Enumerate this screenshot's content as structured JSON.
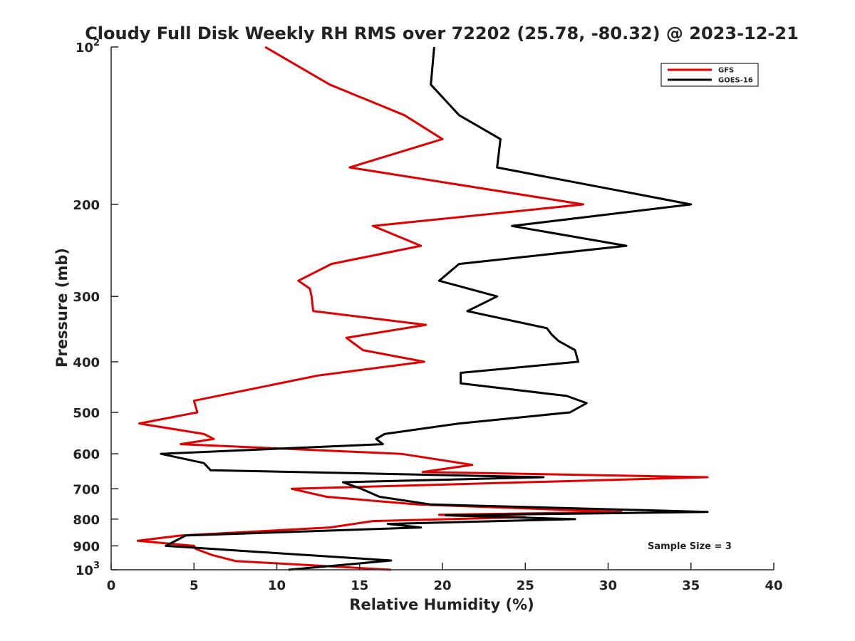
{
  "chart_data": {
    "type": "line",
    "title": "Cloudy Full Disk Weekly RH RMS over 72202 (25.78, -80.32) @ 2023-12-21",
    "xlabel": "Relative Humidity (%)",
    "ylabel": "Pressure (mb)",
    "xlim": [
      0,
      40
    ],
    "ylim": [
      100,
      1000
    ],
    "yscale": "log",
    "y_reversed": true,
    "grid": false,
    "legend_position": "top-right",
    "x_ticks": [
      0,
      5,
      10,
      15,
      20,
      25,
      30,
      35,
      40
    ],
    "x_tick_labels": [
      "0",
      "5",
      "10",
      "15",
      "20",
      "25",
      "30",
      "35",
      "40"
    ],
    "y_ticks": [
      {
        "value": 100,
        "base": "10",
        "exp": "2"
      },
      {
        "value": 200,
        "label": "200"
      },
      {
        "value": 300,
        "label": "300"
      },
      {
        "value": 400,
        "label": "400"
      },
      {
        "value": 500,
        "label": "500"
      },
      {
        "value": 600,
        "label": "600"
      },
      {
        "value": 700,
        "label": "700"
      },
      {
        "value": 800,
        "label": "800"
      },
      {
        "value": 900,
        "label": "900"
      },
      {
        "value": 1000,
        "base": "10",
        "exp": "3"
      }
    ],
    "annotation": "Sample Size = 3",
    "series": [
      {
        "name": "GFS",
        "color": "#e00000",
        "points": [
          [
            9.3,
            100
          ],
          [
            13.2,
            118
          ],
          [
            17.7,
            135
          ],
          [
            20.0,
            150
          ],
          [
            14.4,
            170
          ],
          [
            28.5,
            200
          ],
          [
            15.8,
            220
          ],
          [
            18.7,
            240
          ],
          [
            13.3,
            260
          ],
          [
            11.3,
            280
          ],
          [
            12.0,
            290
          ],
          [
            12.1,
            300
          ],
          [
            12.2,
            320
          ],
          [
            19.0,
            340
          ],
          [
            14.2,
            360
          ],
          [
            15.2,
            380
          ],
          [
            18.9,
            400
          ],
          [
            12.5,
            425
          ],
          [
            5.0,
            475
          ],
          [
            5.2,
            500
          ],
          [
            1.7,
            525
          ],
          [
            5.6,
            550
          ],
          [
            6.2,
            562
          ],
          [
            4.2,
            575
          ],
          [
            17.5,
            600
          ],
          [
            21.8,
            630
          ],
          [
            18.8,
            650
          ],
          [
            36.0,
            665
          ],
          [
            10.9,
            700
          ],
          [
            13.0,
            725
          ],
          [
            18.5,
            750
          ],
          [
            30.8,
            775
          ],
          [
            19.8,
            785
          ],
          [
            25.0,
            793
          ],
          [
            15.8,
            807
          ],
          [
            13.2,
            830
          ],
          [
            4.2,
            860
          ],
          [
            1.6,
            880
          ],
          [
            5.0,
            900
          ],
          [
            5.1,
            912
          ],
          [
            6.1,
            937
          ],
          [
            7.5,
            962
          ],
          [
            16.9,
            1000
          ]
        ]
      },
      {
        "name": "GOES-16",
        "color": "#000000",
        "points": [
          [
            19.5,
            100
          ],
          [
            19.3,
            118
          ],
          [
            21.0,
            135
          ],
          [
            23.5,
            150
          ],
          [
            23.3,
            170
          ],
          [
            35.0,
            200
          ],
          [
            24.2,
            220
          ],
          [
            31.1,
            240
          ],
          [
            21.0,
            260
          ],
          [
            19.8,
            280
          ],
          [
            23.3,
            300
          ],
          [
            21.5,
            320
          ],
          [
            26.3,
            345
          ],
          [
            26.6,
            355
          ],
          [
            27.0,
            365
          ],
          [
            28.0,
            380
          ],
          [
            28.2,
            400
          ],
          [
            21.1,
            420
          ],
          [
            21.1,
            440
          ],
          [
            27.5,
            465
          ],
          [
            28.7,
            480
          ],
          [
            27.7,
            500
          ],
          [
            21.0,
            525
          ],
          [
            16.5,
            550
          ],
          [
            16.0,
            562
          ],
          [
            16.4,
            575
          ],
          [
            3.0,
            600
          ],
          [
            5.6,
            625
          ],
          [
            6.0,
            645
          ],
          [
            26.1,
            665
          ],
          [
            14.0,
            680
          ],
          [
            15.1,
            700
          ],
          [
            16.2,
            725
          ],
          [
            19.3,
            750
          ],
          [
            36.0,
            775
          ],
          [
            20.2,
            787
          ],
          [
            28.0,
            800
          ],
          [
            16.7,
            817
          ],
          [
            18.7,
            830
          ],
          [
            4.5,
            860
          ],
          [
            3.3,
            900
          ],
          [
            9.0,
            925
          ],
          [
            16.9,
            960
          ],
          [
            10.7,
            1000
          ]
        ]
      }
    ]
  }
}
